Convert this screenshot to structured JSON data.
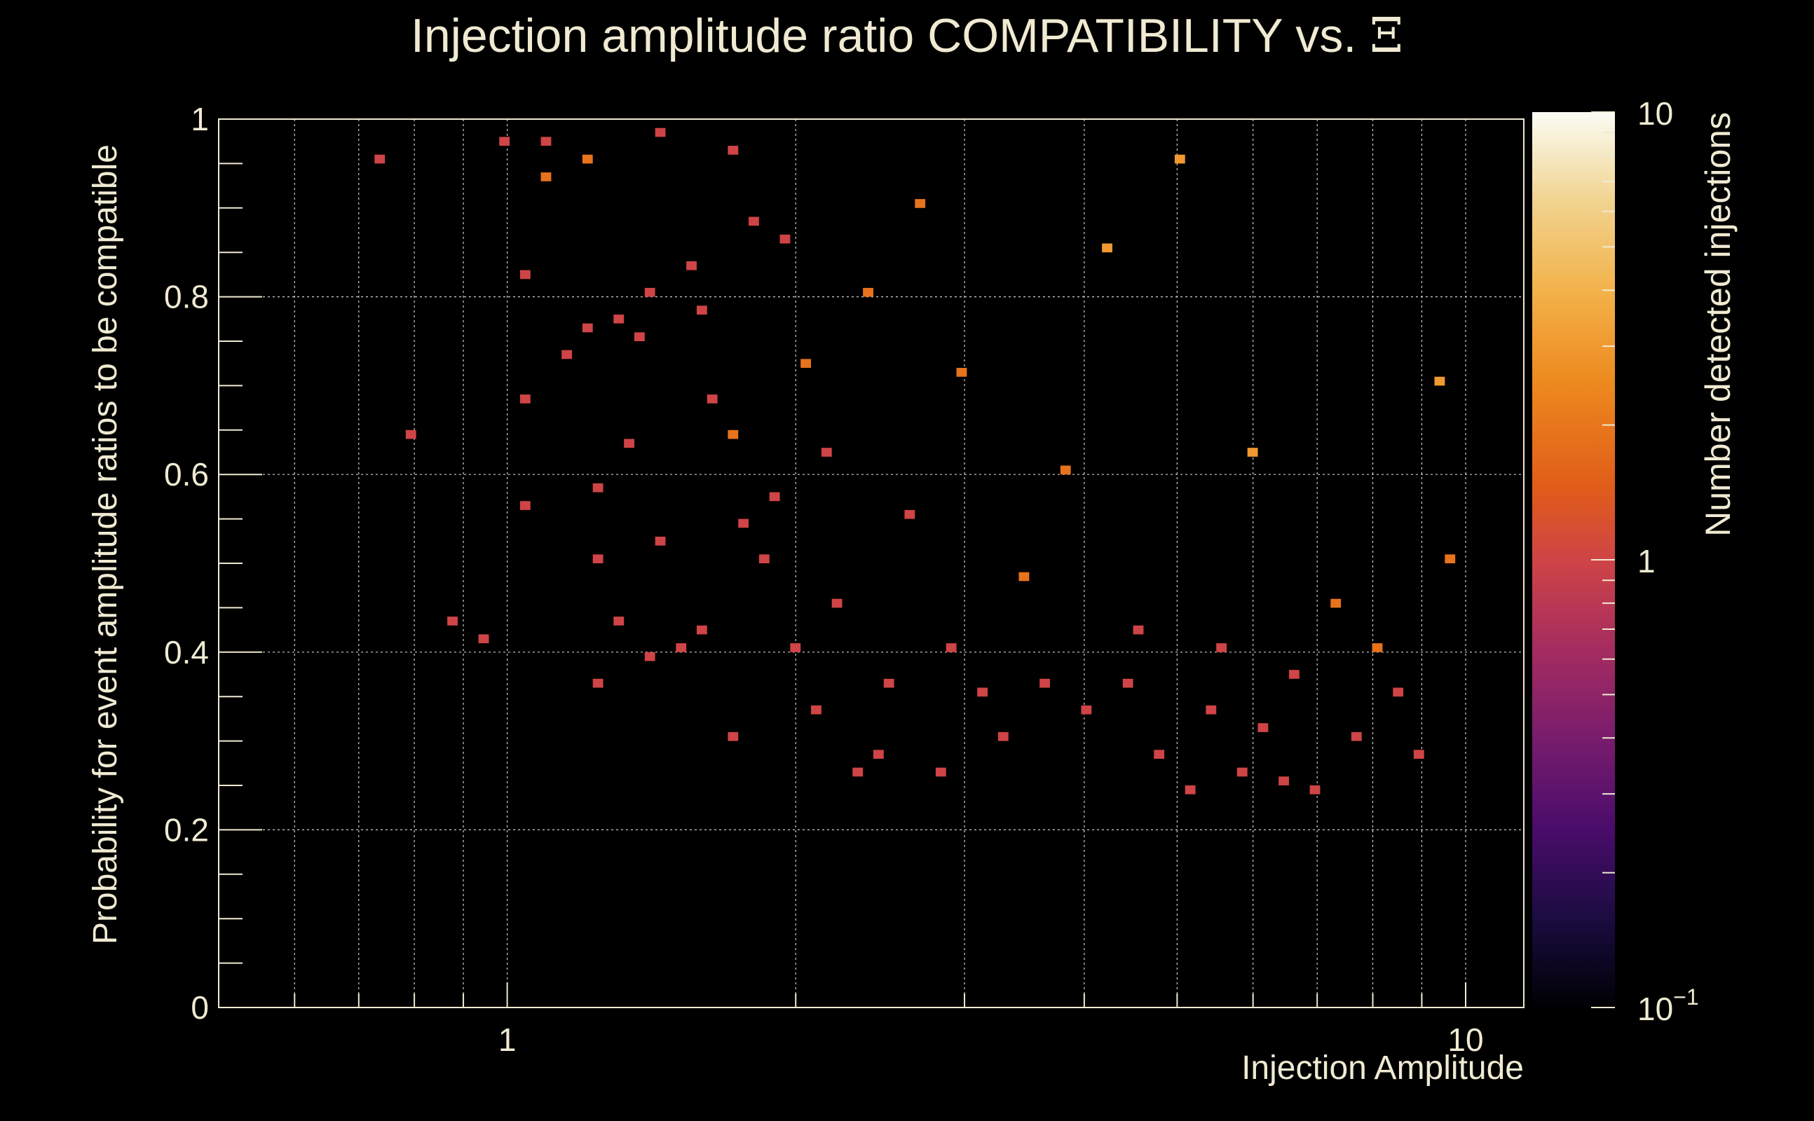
{
  "colors": {
    "background": "#000000",
    "text": "#f0ead2",
    "colormap": [
      "#000004",
      "#1b0c41",
      "#4a0c6b",
      "#781c6d",
      "#a52c60",
      "#cf4446",
      "#e05c1a",
      "#ed8a1f",
      "#f3b24a",
      "#f1d38f",
      "#fbfcf4"
    ]
  },
  "chart_data": {
    "type": "heatmap",
    "title": "Injection amplitude ratio COMPATIBILITY vs. ",
    "title_symbol": "Ξ",
    "xlabel": "Injection Amplitude",
    "ylabel": "Probability for event amplitude ratios to be compatible",
    "zlabel": "Number detected injections",
    "x_scale": "log",
    "xlim": [
      0.5,
      11.5
    ],
    "ylim": [
      0,
      1
    ],
    "z_scale": "log",
    "zlim": [
      0.1,
      10
    ],
    "x_ticks": [
      {
        "value": 1,
        "label": "1"
      },
      {
        "value": 10,
        "label": "10"
      }
    ],
    "y_ticks": [
      {
        "value": 0,
        "label": "0"
      },
      {
        "value": 0.2,
        "label": "0.2"
      },
      {
        "value": 0.4,
        "label": "0.4"
      },
      {
        "value": 0.6,
        "label": "0.6"
      },
      {
        "value": 0.8,
        "label": "0.8"
      },
      {
        "value": 1,
        "label": "1"
      }
    ],
    "z_ticks": [
      {
        "value": 0.1,
        "label": "10",
        "exp": "−1"
      },
      {
        "value": 1,
        "label": "1",
        "exp": ""
      },
      {
        "value": 10,
        "label": "10",
        "exp": ""
      }
    ],
    "grid": true,
    "bins": {
      "x_count": 120,
      "x_range": [
        0.5,
        10
      ],
      "y_count": 100,
      "y_range": [
        0,
        1
      ]
    },
    "cells": [
      [
        0.74,
        0.955,
        1
      ],
      [
        0.8,
        0.64,
        1
      ],
      [
        0.88,
        0.43,
        1
      ],
      [
        0.95,
        0.41,
        1
      ],
      [
        1.0,
        0.97,
        1
      ],
      [
        1.05,
        0.82,
        1
      ],
      [
        1.05,
        0.68,
        1
      ],
      [
        1.05,
        0.56,
        1
      ],
      [
        1.1,
        0.94,
        2
      ],
      [
        1.1,
        0.97,
        1
      ],
      [
        1.2,
        0.95,
        2
      ],
      [
        1.22,
        0.76,
        1
      ],
      [
        1.15,
        0.73,
        1
      ],
      [
        1.25,
        0.59,
        1
      ],
      [
        1.25,
        0.5,
        1
      ],
      [
        1.25,
        0.36,
        1
      ],
      [
        1.3,
        0.77,
        1
      ],
      [
        1.3,
        0.43,
        1
      ],
      [
        1.35,
        0.63,
        1
      ],
      [
        1.38,
        0.75,
        1
      ],
      [
        1.4,
        0.8,
        1
      ],
      [
        1.4,
        0.39,
        1
      ],
      [
        1.45,
        0.98,
        1
      ],
      [
        1.45,
        0.52,
        1
      ],
      [
        1.5,
        0.4,
        1
      ],
      [
        1.55,
        0.83,
        1
      ],
      [
        1.6,
        0.78,
        1
      ],
      [
        1.6,
        0.42,
        1
      ],
      [
        1.65,
        0.68,
        1
      ],
      [
        1.7,
        0.96,
        1
      ],
      [
        1.7,
        0.64,
        2
      ],
      [
        1.7,
        0.3,
        1
      ],
      [
        1.75,
        0.54,
        1
      ],
      [
        1.8,
        0.88,
        1
      ],
      [
        1.85,
        0.5,
        1
      ],
      [
        1.9,
        0.58,
        1
      ],
      [
        1.95,
        0.86,
        1
      ],
      [
        2.0,
        0.4,
        1
      ],
      [
        2.05,
        0.72,
        2
      ],
      [
        2.1,
        0.33,
        1
      ],
      [
        2.15,
        0.62,
        1
      ],
      [
        2.2,
        0.45,
        1
      ],
      [
        2.3,
        0.26,
        1
      ],
      [
        2.4,
        0.8,
        2
      ],
      [
        2.45,
        0.28,
        1
      ],
      [
        2.5,
        0.36,
        1
      ],
      [
        2.6,
        0.55,
        1
      ],
      [
        2.7,
        0.9,
        2
      ],
      [
        2.8,
        0.26,
        1
      ],
      [
        2.9,
        0.4,
        1
      ],
      [
        3.0,
        0.71,
        2
      ],
      [
        3.1,
        0.35,
        1
      ],
      [
        3.3,
        0.3,
        1
      ],
      [
        3.5,
        0.48,
        2
      ],
      [
        3.6,
        0.36,
        1
      ],
      [
        3.8,
        0.6,
        2
      ],
      [
        4.0,
        0.33,
        1
      ],
      [
        4.2,
        0.85,
        3
      ],
      [
        4.4,
        0.36,
        1
      ],
      [
        4.6,
        0.42,
        1
      ],
      [
        4.8,
        0.29,
        1
      ],
      [
        5.0,
        0.95,
        3
      ],
      [
        5.2,
        0.24,
        1
      ],
      [
        5.4,
        0.33,
        1
      ],
      [
        5.6,
        0.4,
        1
      ],
      [
        5.8,
        0.26,
        1
      ],
      [
        6.0,
        0.62,
        3
      ],
      [
        6.2,
        0.31,
        1
      ],
      [
        6.5,
        0.25,
        1
      ],
      [
        6.7,
        0.37,
        1
      ],
      [
        7.0,
        0.24,
        1
      ],
      [
        7.3,
        0.45,
        2
      ],
      [
        7.6,
        0.3,
        1
      ],
      [
        8.0,
        0.4,
        2
      ],
      [
        8.5,
        0.35,
        1
      ],
      [
        9.0,
        0.28,
        1
      ],
      [
        9.4,
        0.7,
        3
      ],
      [
        9.7,
        0.5,
        2
      ]
    ]
  }
}
